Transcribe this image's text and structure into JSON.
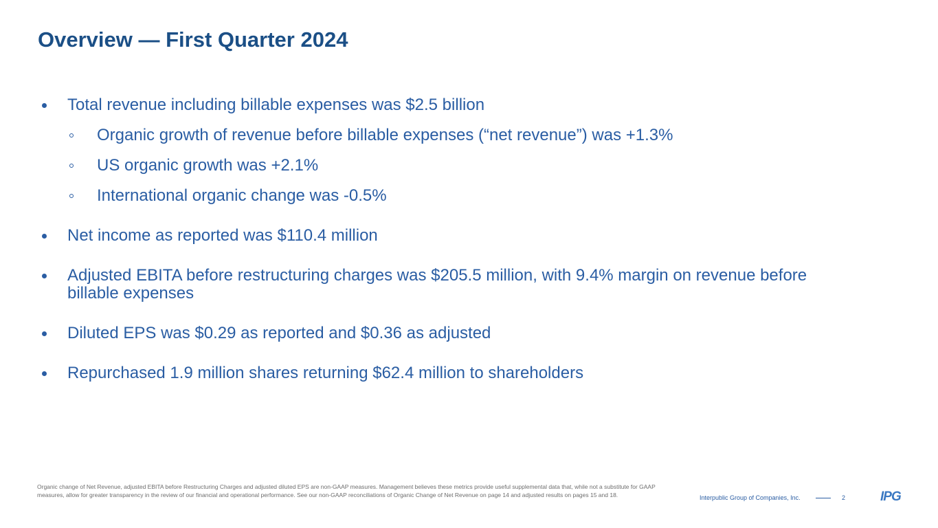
{
  "header": {
    "title": "Overview — First Quarter 2024"
  },
  "bullets": [
    {
      "text": "Total revenue including billable expenses was $2.5 billion",
      "sub": [
        "Organic growth of revenue before billable expenses (“net revenue”) was +1.3%",
        "US organic growth was +2.1%",
        "International organic change was -0.5%"
      ]
    },
    {
      "text": "Net income as reported was $110.4 million"
    },
    {
      "text": "Adjusted EBITA before restructuring charges was $205.5 million, with 9.4% margin on revenue before billable expenses"
    },
    {
      "text": "Diluted EPS was $0.29 as reported and $0.36 as adjusted"
    },
    {
      "text": "Repurchased 1.9 million shares returning $62.4 million to shareholders"
    }
  ],
  "footer": {
    "footnote": "Organic change of Net Revenue, adjusted EBITA before Restructuring Charges and adjusted diluted EPS are non-GAAP measures. Management believes these metrics provide useful supplemental data that, while not a substitute for GAAP measures, allow for greater transparency in the review of our financial and operational performance. See our non-GAAP reconciliations of Organic Change of Net Revenue on page 14 and adjusted results on pages 15 and 18.",
    "company": "Interpublic Group of Companies, Inc.",
    "page": "2",
    "logo": "IPG"
  }
}
